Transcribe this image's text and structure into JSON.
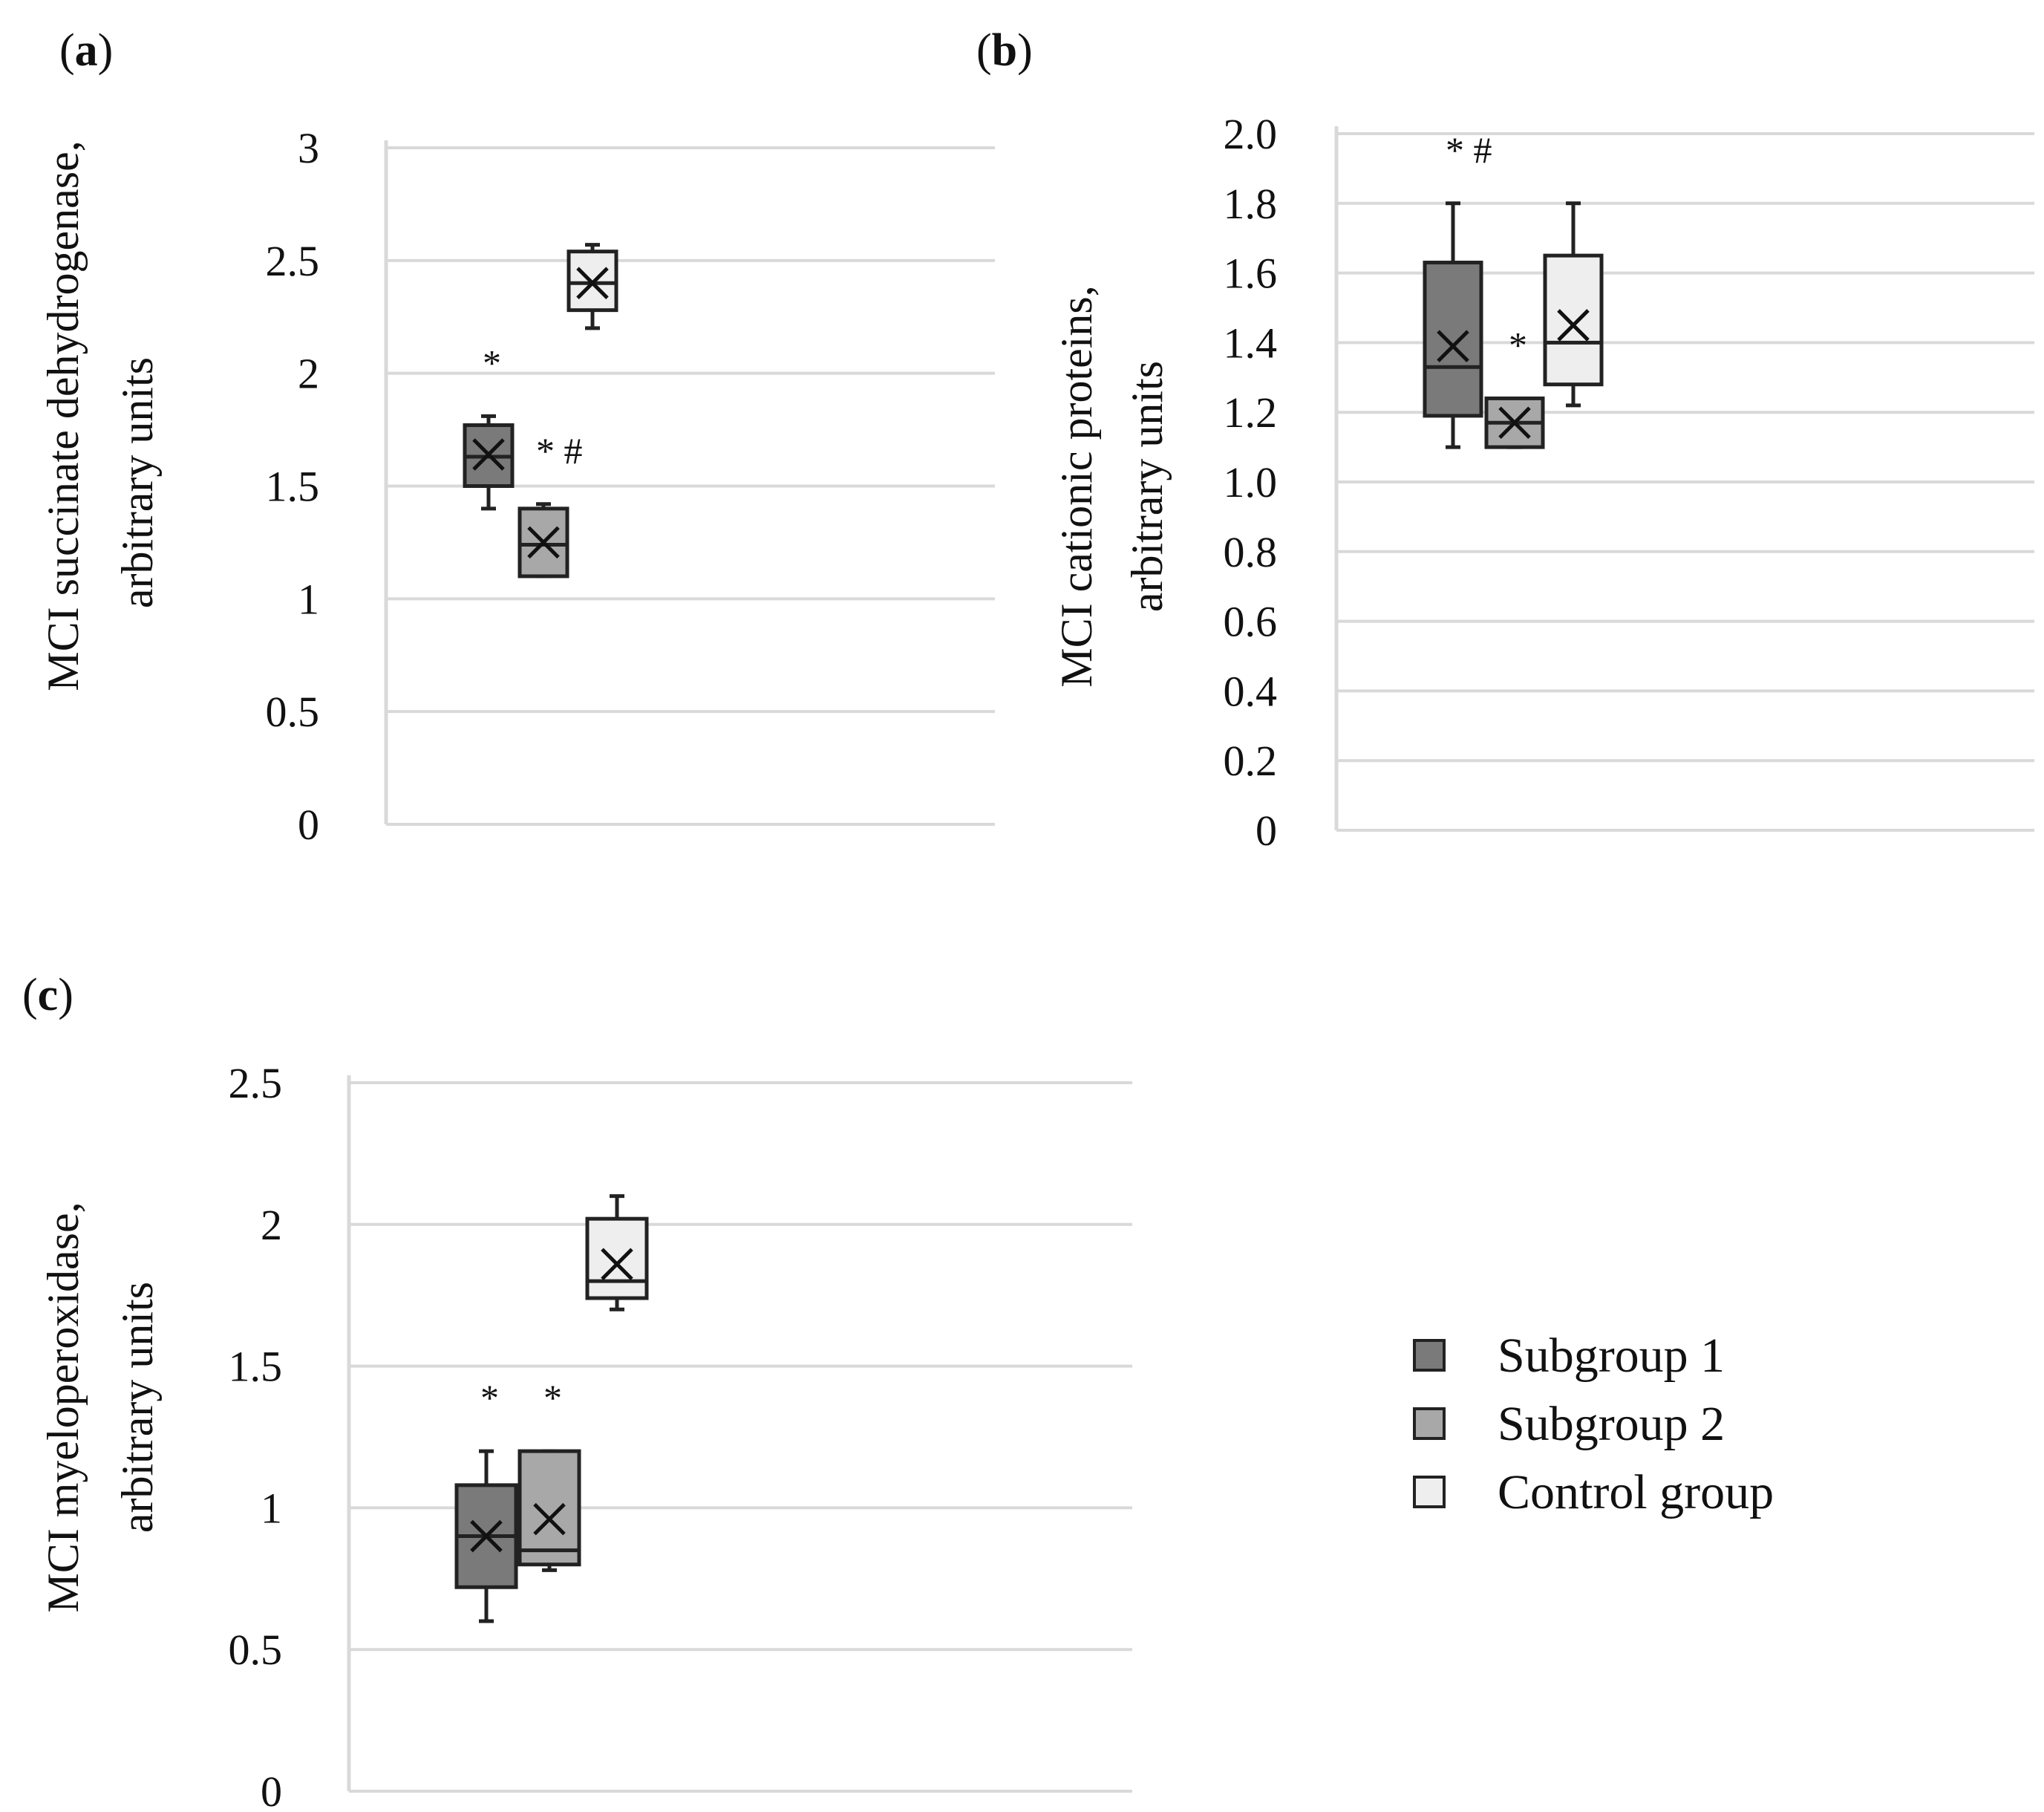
{
  "colors": {
    "subgroup1": "#7a7a7a",
    "subgroup2": "#a8a8a8",
    "control": "#eeeeee",
    "gridline": "#d9d9d9",
    "stroke": "#222222"
  },
  "legend": [
    {
      "label": "Subgroup 1",
      "color": "#7a7a7a"
    },
    {
      "label": "Subgroup 2",
      "color": "#a8a8a8"
    },
    {
      "label": "Control group",
      "color": "#eeeeee"
    }
  ],
  "chart_data": [
    {
      "panel": "a",
      "panel_label_letter": "a",
      "type": "box",
      "ylabel_lines": [
        "MCI succinate dehydrogenase,",
        "arbitrary units"
      ],
      "ylim": [
        0,
        3
      ],
      "yticks": [
        0,
        0.5,
        1,
        1.5,
        2,
        2.5,
        3
      ],
      "ytick_labels": [
        "0",
        "0.5",
        "1",
        "1.5",
        "2",
        "2.5",
        "3"
      ],
      "series": [
        {
          "name": "Subgroup 1",
          "whisker_low": 1.4,
          "q1": 1.5,
          "median": 1.63,
          "q3": 1.77,
          "whisker_high": 1.81,
          "mean": 1.64,
          "annotation": "*"
        },
        {
          "name": "Subgroup 2",
          "whisker_low": 1.1,
          "q1": 1.1,
          "median": 1.24,
          "q3": 1.4,
          "whisker_high": 1.42,
          "mean": 1.25,
          "annotation": "* #"
        },
        {
          "name": "Control group",
          "whisker_low": 2.2,
          "q1": 2.28,
          "median": 2.4,
          "q3": 2.54,
          "whisker_high": 2.57,
          "mean": 2.4,
          "annotation": ""
        }
      ]
    },
    {
      "panel": "b",
      "panel_label_letter": "b",
      "type": "box",
      "ylabel_lines": [
        "MCI cationic proteins,",
        "arbitrary units"
      ],
      "ylim": [
        0,
        2.0
      ],
      "yticks": [
        0,
        0.2,
        0.4,
        0.6,
        0.8,
        1.0,
        1.2,
        1.4,
        1.6,
        1.8,
        2.0
      ],
      "ytick_labels": [
        "0",
        "0.2",
        "0.4",
        "0.6",
        "0.8",
        "1.0",
        "1.2",
        "1.4",
        "1.6",
        "1.8",
        "2.0"
      ],
      "series": [
        {
          "name": "Subgroup 1",
          "whisker_low": 1.1,
          "q1": 1.19,
          "median": 1.33,
          "q3": 1.63,
          "whisker_high": 1.8,
          "mean": 1.39,
          "annotation": "* #"
        },
        {
          "name": "Subgroup 2",
          "whisker_low": 1.1,
          "q1": 1.1,
          "median": 1.17,
          "q3": 1.24,
          "whisker_high": 1.24,
          "mean": 1.17,
          "annotation": "*"
        },
        {
          "name": "Control group",
          "whisker_low": 1.22,
          "q1": 1.28,
          "median": 1.4,
          "q3": 1.65,
          "whisker_high": 1.8,
          "mean": 1.45,
          "annotation": ""
        }
      ]
    },
    {
      "panel": "c",
      "panel_label_letter": "c",
      "type": "box",
      "ylabel_lines": [
        "MCI myeloperoxidase,",
        "arbitrary units"
      ],
      "ylim": [
        0,
        2.5
      ],
      "yticks": [
        0,
        0.5,
        1,
        1.5,
        2,
        2.5
      ],
      "ytick_labels": [
        "0",
        "0.5",
        "1",
        "1.5",
        "2",
        "2.5"
      ],
      "series": [
        {
          "name": "Subgroup 1",
          "whisker_low": 0.6,
          "q1": 0.72,
          "median": 0.9,
          "q3": 1.08,
          "whisker_high": 1.2,
          "mean": 0.9,
          "annotation": "*"
        },
        {
          "name": "Subgroup 2",
          "whisker_low": 0.78,
          "q1": 0.8,
          "median": 0.85,
          "q3": 1.2,
          "whisker_high": 1.2,
          "mean": 0.96,
          "annotation": "*"
        },
        {
          "name": "Control group",
          "whisker_low": 1.7,
          "q1": 1.74,
          "median": 1.8,
          "q3": 2.02,
          "whisker_high": 2.1,
          "mean": 1.86,
          "annotation": ""
        }
      ]
    }
  ]
}
